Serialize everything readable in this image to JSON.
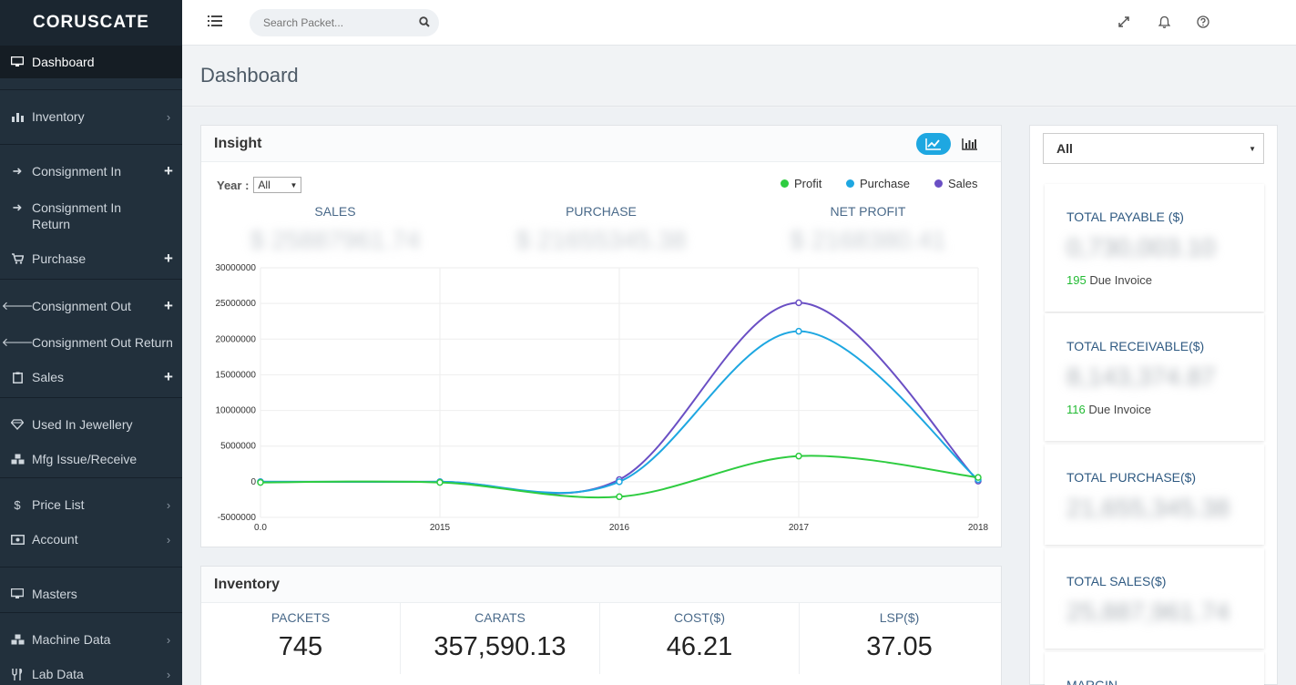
{
  "brand": "CORUSCATE",
  "sidebar": {
    "items": [
      {
        "label": "Dashboard",
        "icon": "monitor-icon",
        "right": ""
      },
      {
        "label": "Inventory",
        "icon": "bar-chart-icon",
        "right": "›"
      },
      {
        "label": "Consignment In",
        "icon": "arrow-right-icon",
        "right": "+"
      },
      {
        "label": "Consignment In Return",
        "icon": "arrow-right-icon",
        "right": ""
      },
      {
        "label": "Purchase",
        "icon": "cart-icon",
        "right": "+"
      },
      {
        "label": "Consignment Out",
        "icon": "arrow-left-icon",
        "right": "+"
      },
      {
        "label": "Consignment Out Return",
        "icon": "arrow-left-icon",
        "right": ""
      },
      {
        "label": "Sales",
        "icon": "clipboard-icon",
        "right": "+"
      },
      {
        "label": "Used In Jewellery",
        "icon": "diamond-icon",
        "right": ""
      },
      {
        "label": "Mfg Issue/Receive",
        "icon": "cubes-icon",
        "right": ""
      },
      {
        "label": "Price List",
        "icon": "dollar-icon",
        "right": "›"
      },
      {
        "label": "Account",
        "icon": "money-icon",
        "right": "›"
      },
      {
        "label": "Masters",
        "icon": "monitor-icon",
        "right": ""
      },
      {
        "label": "Machine Data",
        "icon": "cubes-icon",
        "right": "›"
      },
      {
        "label": "Lab Data",
        "icon": "lab-icon",
        "right": "›"
      }
    ]
  },
  "topbar": {
    "search_placeholder": "Search Packet..."
  },
  "page": {
    "title": "Dashboard"
  },
  "insight": {
    "title": "Insight",
    "year_label": "Year :",
    "year_value": "All",
    "kpis": [
      {
        "label": "SALES",
        "value": "$ 25887961.74"
      },
      {
        "label": "PURCHASE",
        "value": "$ 21655345.38"
      },
      {
        "label": "NET PROFIT",
        "value": "$ 2168380.41"
      }
    ]
  },
  "chart_data": {
    "type": "line",
    "x": [
      "0.0",
      "2015",
      "2016",
      "2017",
      "2018"
    ],
    "ylim": [
      -5000000,
      30000000
    ],
    "yticks": [
      "30000000",
      "25000000",
      "20000000",
      "15000000",
      "10000000",
      "5000000",
      "0",
      "-5000000"
    ],
    "series": [
      {
        "name": "Profit",
        "color": "#2ecc40",
        "values": [
          -100000,
          -100000,
          -2100000,
          3600000,
          600000
        ]
      },
      {
        "name": "Purchase",
        "color": "#1ea7e1",
        "values": [
          0,
          0,
          0,
          21100000,
          300000
        ]
      },
      {
        "name": "Sales",
        "color": "#6a4fc4",
        "values": [
          0,
          0,
          300000,
          25100000,
          100000
        ]
      }
    ],
    "grid": true,
    "legend": "top-right"
  },
  "inventory": {
    "title": "Inventory",
    "cells": [
      {
        "label": "PACKETS",
        "value": "745"
      },
      {
        "label": "CARATS",
        "value": "357,590.13"
      },
      {
        "label": "COST($)",
        "value": "46.21"
      },
      {
        "label": "LSP($)",
        "value": "37.05"
      }
    ]
  },
  "right": {
    "filter_value": "All",
    "cards": [
      {
        "label": "TOTAL PAYABLE ($)",
        "value": "0,730,003.10",
        "sub_num": "195",
        "sub_text": " Due Invoice"
      },
      {
        "label": "TOTAL RECEIVABLE($)",
        "value": "8,143,374.87",
        "sub_num": "116",
        "sub_text": " Due Invoice"
      },
      {
        "label": "TOTAL PURCHASE($)",
        "value": "21,655,345.38",
        "sub_num": "",
        "sub_text": ""
      },
      {
        "label": "TOTAL SALES($)",
        "value": "25,887,961.74",
        "sub_num": "",
        "sub_text": ""
      },
      {
        "label": "MARGIN",
        "value": "",
        "sub_num": "",
        "sub_text": ""
      }
    ]
  }
}
